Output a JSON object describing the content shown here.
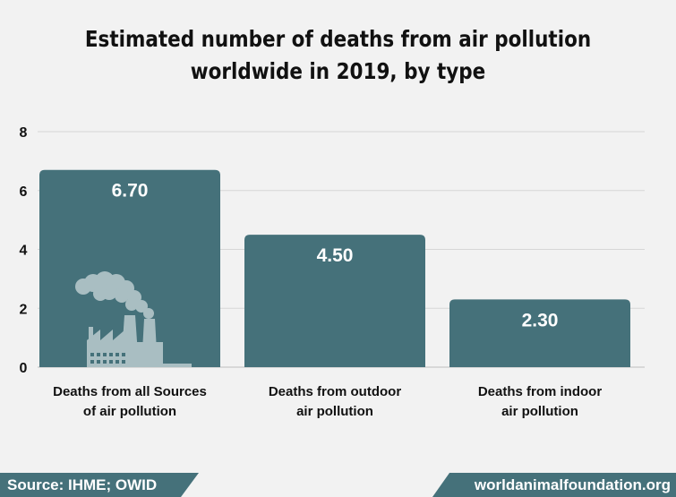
{
  "chart_data": {
    "type": "bar",
    "title_lines": [
      "Estimated number of deaths from air pollution",
      "worldwide in 2019, by type"
    ],
    "categories": [
      [
        "Deaths from all Sources",
        "of air pollution"
      ],
      [
        "Deaths from outdoor",
        "air pollution"
      ],
      [
        "Deaths from indoor",
        "air pollution"
      ]
    ],
    "values": [
      6.7,
      4.5,
      2.3
    ],
    "value_labels": [
      "6.70",
      "4.50",
      "2.30"
    ],
    "ylim": [
      0,
      8
    ],
    "yticks": [
      0,
      2,
      4,
      6,
      8
    ],
    "grid": true,
    "bar_color": "#45717a",
    "grid_color": "#d6d6d6"
  },
  "footer": {
    "source": "Source: IHME; OWID",
    "site": "worldanimalfoundation.org",
    "bg_color": "#45717a"
  },
  "decoration": {
    "icon": "factory-icon"
  }
}
